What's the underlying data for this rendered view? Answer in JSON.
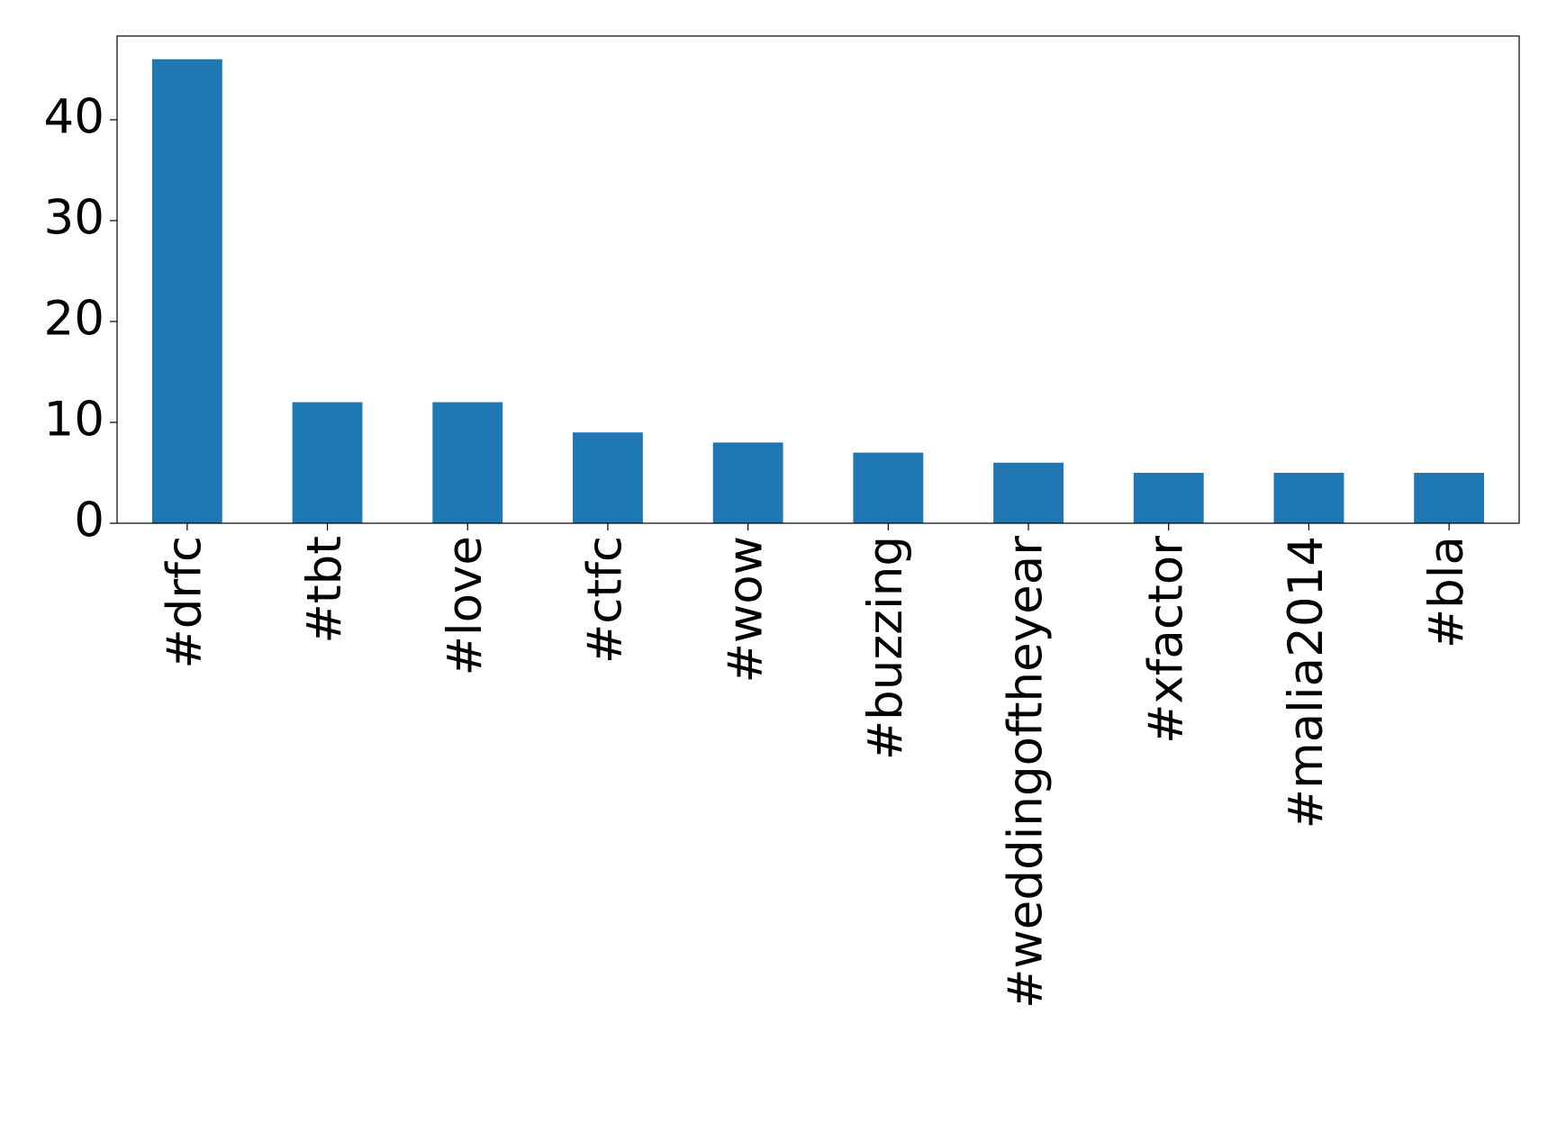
{
  "chart_data": {
    "type": "bar",
    "categories": [
      "#drfc",
      "#tbt",
      "#love",
      "#ctfc",
      "#wow",
      "#buzzing",
      "#weddingoftheyear",
      "#xfactor",
      "#malia2014",
      "#bla"
    ],
    "values": [
      46,
      12,
      12,
      9,
      8,
      7,
      6,
      5,
      5,
      5
    ],
    "color": "#1f77b4",
    "ylim": [
      0,
      48.3
    ],
    "yticks": [
      0,
      10,
      20,
      30,
      40
    ],
    "grid": false
  }
}
